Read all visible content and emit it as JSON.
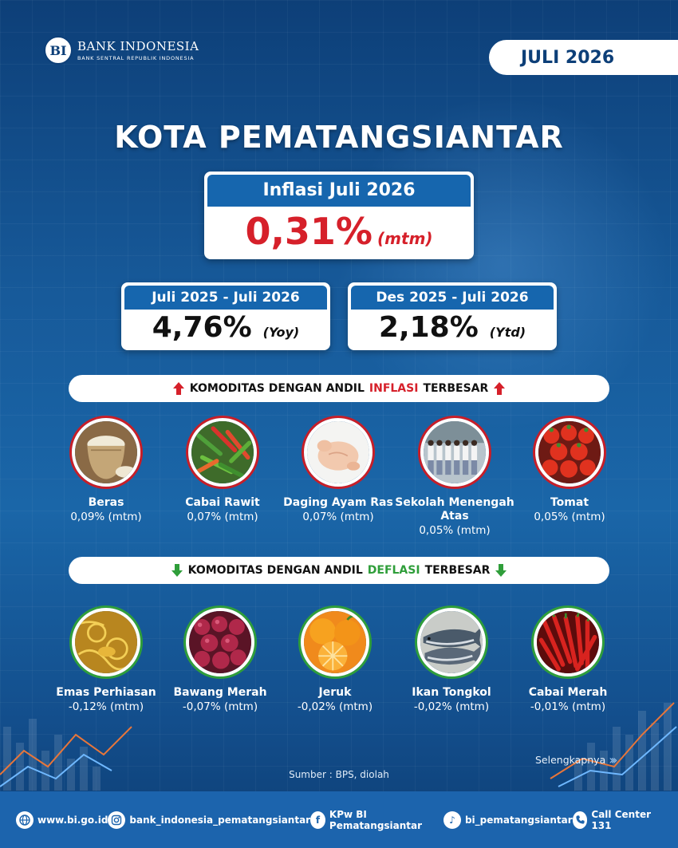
{
  "header": {
    "logo_mark": "BI",
    "logo_name": "BANK INDONESIA",
    "logo_sub": "BANK SENTRAL REPUBLIK INDONESIA",
    "period": "JULI 2026"
  },
  "city": "KOTA PEMATANGSIANTAR",
  "inflation": {
    "label": "Inflasi Juli 2026",
    "value": "0,31%",
    "unit": "(mtm)"
  },
  "yoy": {
    "label": "Juli 2025 - Juli 2026",
    "value": "4,76%",
    "unit": "(Yoy)"
  },
  "ytd": {
    "label": "Des 2025 - Juli 2026",
    "value": "2,18%",
    "unit": "(Ytd)"
  },
  "inflation_section": {
    "prefix": "KOMODITAS DENGAN ANDIL",
    "highlight": "INFLASI",
    "suffix": "TERBESAR",
    "accent_color": "#d6202a",
    "items": [
      {
        "name": "Beras",
        "value": "0,09% (mtm)"
      },
      {
        "name": "Cabai Rawit",
        "value": "0,07% (mtm)"
      },
      {
        "name": "Daging Ayam Ras",
        "value": "0,07% (mtm)"
      },
      {
        "name": "Sekolah Menengah Atas",
        "value": "0,05% (mtm)"
      },
      {
        "name": "Tomat",
        "value": "0,05% (mtm)"
      }
    ]
  },
  "deflation_section": {
    "prefix": "KOMODITAS DENGAN ANDIL",
    "highlight": "DEFLASI",
    "suffix": "TERBESAR",
    "accent_color": "#2f9e3a",
    "items": [
      {
        "name": "Emas Perhiasan",
        "value": "-0,12% (mtm)"
      },
      {
        "name": "Bawang Merah",
        "value": "-0,07% (mtm)"
      },
      {
        "name": "Jeruk",
        "value": "-0,02% (mtm)"
      },
      {
        "name": "Ikan Tongkol",
        "value": "-0,02% (mtm)"
      },
      {
        "name": "Cabai Merah",
        "value": "-0,01% (mtm)"
      }
    ]
  },
  "source": "Sumber : BPS, diolah",
  "more": "Selengkapnya",
  "footer": {
    "website": "www.bi.go.id",
    "instagram": "bank_indonesia_pematangsiantar",
    "facebook": "KPw BI Pematangsiantar",
    "tiktok": "bi_pematangsiantar",
    "call": "Call Center 131"
  }
}
